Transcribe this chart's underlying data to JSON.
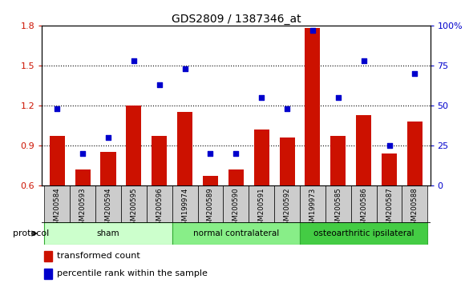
{
  "title": "GDS2809 / 1387346_at",
  "samples": [
    "GSM200584",
    "GSM200593",
    "GSM200594",
    "GSM200595",
    "GSM200596",
    "GSM199974",
    "GSM200589",
    "GSM200590",
    "GSM200591",
    "GSM200592",
    "GSM199973",
    "GSM200585",
    "GSM200586",
    "GSM200587",
    "GSM200588"
  ],
  "bar_values": [
    0.97,
    0.72,
    0.85,
    1.2,
    0.97,
    1.15,
    0.67,
    0.72,
    1.02,
    0.96,
    1.78,
    0.97,
    1.13,
    0.84,
    1.08
  ],
  "scatter_values": [
    48,
    20,
    30,
    78,
    63,
    73,
    20,
    20,
    55,
    48,
    97,
    55,
    78,
    25,
    70
  ],
  "bar_color": "#cc1100",
  "scatter_color": "#0000cc",
  "ylim_left": [
    0.6,
    1.8
  ],
  "ylim_right": [
    0,
    100
  ],
  "yticks_left": [
    0.6,
    0.9,
    1.2,
    1.5,
    1.8
  ],
  "ytick_labels_left": [
    "0.6",
    "0.9",
    "1.2",
    "1.5",
    "1.8"
  ],
  "yticks_right": [
    0,
    25,
    50,
    75,
    100
  ],
  "ytick_labels_right": [
    "0",
    "25",
    "50",
    "75",
    "100%"
  ],
  "groups": [
    {
      "label": "sham",
      "start": 0,
      "end": 5,
      "color": "#ccffcc"
    },
    {
      "label": "normal contralateral",
      "start": 5,
      "end": 10,
      "color": "#88ee88"
    },
    {
      "label": "osteoarthritic ipsilateral",
      "start": 10,
      "end": 15,
      "color": "#44cc44"
    }
  ],
  "protocol_label": "protocol",
  "legend_bar_label": "transformed count",
  "legend_scatter_label": "percentile rank within the sample",
  "xtick_bg": "#cccccc",
  "grid_lines": [
    0.9,
    1.2,
    1.5
  ]
}
